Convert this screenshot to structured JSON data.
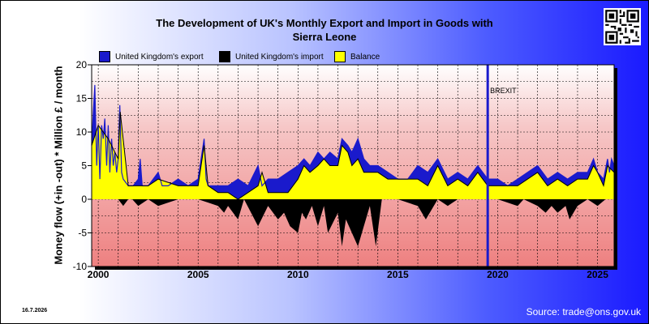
{
  "title_lines": [
    "The Development of UK's Monthly Export and Import in Goods with",
    "Sierra Leone"
  ],
  "footer": {
    "date": "16.7.2026",
    "source": "Source: trade@ons.gov.uk"
  },
  "colors": {
    "export": "#1a1acc",
    "import": "#000000",
    "balance": "#ffff00",
    "brexit": "#1a1acc"
  },
  "icons": {
    "qr": "qr-code-icon"
  },
  "chart_data": {
    "type": "line",
    "title": "The Development of UK's Monthly Export and Import in Goods with Sierra Leone",
    "xlabel": "",
    "ylabel": "Money flow (+in -out) * Million £ / month",
    "ylim": [
      -10,
      20
    ],
    "xlim": [
      1999.67,
      2025.83
    ],
    "yticks": [
      "20",
      "15",
      "10",
      "5",
      "0",
      "-5",
      "-10"
    ],
    "xticks": [
      "2000",
      "2005",
      "2010",
      "2015",
      "2020",
      "2025"
    ],
    "grid": true,
    "legend": {
      "placement": "top-left",
      "entries": [
        "United Kingdom's export",
        "United Kingdom's import",
        "Balance"
      ]
    },
    "annotation": {
      "label": "BREXIT",
      "x": 2019.5
    },
    "x_units": "year",
    "series": [
      {
        "name": "United Kingdom's export",
        "x": [
          1999.67,
          1999.75,
          1999.83,
          1999.92,
          2000.0,
          2000.08,
          2000.17,
          2000.25,
          2000.33,
          2000.42,
          2000.5,
          2000.58,
          2000.67,
          2000.75,
          2000.83,
          2000.92,
          2001.0,
          2001.08,
          2001.17,
          2001.25,
          2001.5,
          2001.75,
          2002.0,
          2002.1,
          2002.2,
          2002.5,
          2003.0,
          2003.2,
          2003.5,
          2004.0,
          2004.5,
          2005.0,
          2005.3,
          2005.4,
          2005.5,
          2006.0,
          2006.5,
          2007.0,
          2007.5,
          2008.0,
          2008.2,
          2008.5,
          2009.0,
          2009.5,
          2010.0,
          2010.3,
          2010.6,
          2011.0,
          2011.3,
          2011.6,
          2012.0,
          2012.2,
          2012.5,
          2012.7,
          2013.0,
          2013.3,
          2013.6,
          2014.0,
          2014.5,
          2015.0,
          2015.5,
          2016.0,
          2016.5,
          2017.0,
          2017.5,
          2018.0,
          2018.5,
          2019.0,
          2019.5,
          2020.0,
          2020.5,
          2021.0,
          2021.5,
          2022.0,
          2022.5,
          2023.0,
          2023.5,
          2024.0,
          2024.5,
          2024.8,
          2025.0,
          2025.3,
          2025.5,
          2025.6,
          2025.7,
          2025.83
        ],
        "values": [
          8,
          13,
          17,
          5,
          11,
          3,
          11,
          9,
          12,
          5,
          11,
          4,
          9,
          5,
          7,
          4,
          6,
          14,
          4,
          3,
          2,
          2,
          3,
          6,
          2,
          2,
          4,
          2,
          2,
          3,
          2,
          3,
          9,
          3,
          2,
          2,
          2,
          3,
          2,
          5,
          2,
          3,
          3,
          4,
          5,
          6,
          5,
          7,
          6,
          7,
          6,
          9,
          8,
          7,
          9,
          6,
          5,
          5,
          4,
          3,
          3,
          5,
          4,
          6,
          3,
          4,
          3,
          5,
          3,
          3,
          2,
          3,
          4,
          5,
          3,
          4,
          3,
          4,
          4,
          6,
          4,
          3,
          6,
          4,
          6,
          5
        ]
      },
      {
        "name": "United Kingdom's import",
        "x": [
          1999.67,
          2000.5,
          2001.0,
          2001.25,
          2001.5,
          2001.7,
          2002.0,
          2002.5,
          2003.0,
          2004.0,
          2005.0,
          2006.0,
          2006.3,
          2006.5,
          2007.0,
          2007.3,
          2008.0,
          2008.5,
          2009.0,
          2009.3,
          2009.6,
          2010.0,
          2010.2,
          2010.4,
          2010.7,
          2011.0,
          2011.3,
          2011.5,
          2012.0,
          2012.2,
          2012.4,
          2012.7,
          2013.0,
          2013.3,
          2013.6,
          2013.9,
          2014.2,
          2014.6,
          2015.0,
          2016.0,
          2016.4,
          2016.6,
          2017.0,
          2017.5,
          2018.0,
          2019.0,
          2020.0,
          2021.0,
          2021.3,
          2022.0,
          2022.4,
          2022.7,
          2023.0,
          2023.4,
          2023.6,
          2024.0,
          2024.5,
          2025.0,
          2025.4,
          2025.83
        ],
        "values": [
          0,
          0,
          0,
          -1,
          0,
          0,
          -1,
          0,
          -1,
          0,
          0,
          -1,
          -2,
          -1,
          -3,
          0,
          -4,
          -1,
          -3,
          -2,
          -4,
          -5,
          -2,
          -3,
          -1,
          -4,
          -1,
          -5,
          -2,
          -7,
          -3,
          -5,
          -7,
          -4,
          -1,
          -7,
          0,
          0,
          0,
          -1,
          -3,
          -2,
          0,
          -1,
          0,
          0,
          0,
          -1,
          0,
          -1,
          -2,
          -1,
          -2,
          -1,
          -3,
          -1,
          0,
          -1,
          0,
          0
        ]
      },
      {
        "name": "Balance",
        "x": [
          1999.67,
          2000.0,
          2000.5,
          2001.0,
          2001.1,
          2001.5,
          2002.0,
          2002.5,
          2003.0,
          2004.0,
          2005.0,
          2005.3,
          2005.5,
          2006.0,
          2006.5,
          2007.0,
          2007.5,
          2008.0,
          2008.2,
          2008.5,
          2009.0,
          2009.5,
          2010.0,
          2010.3,
          2010.6,
          2011.0,
          2011.3,
          2011.6,
          2012.0,
          2012.2,
          2012.5,
          2012.7,
          2013.0,
          2013.3,
          2013.6,
          2014.0,
          2014.5,
          2015.0,
          2015.5,
          2016.0,
          2016.5,
          2017.0,
          2017.5,
          2018.0,
          2018.5,
          2019.0,
          2019.5,
          2020.0,
          2020.5,
          2021.0,
          2021.5,
          2022.0,
          2022.5,
          2023.0,
          2023.5,
          2024.0,
          2024.5,
          2024.8,
          2025.0,
          2025.3,
          2025.5,
          2025.83
        ],
        "values": [
          8,
          11,
          9,
          6,
          13,
          2,
          2,
          2,
          3,
          2,
          2,
          8,
          2,
          1,
          1,
          0,
          1,
          2,
          4,
          1,
          1,
          1,
          3,
          5,
          4,
          5,
          6,
          5,
          5,
          8,
          7,
          5,
          6,
          4,
          4,
          4,
          3,
          3,
          3,
          3,
          2,
          5,
          2,
          3,
          2,
          4,
          2,
          2,
          2,
          2,
          3,
          4,
          2,
          3,
          2,
          3,
          3,
          5,
          4,
          2,
          5,
          4
        ]
      }
    ]
  }
}
